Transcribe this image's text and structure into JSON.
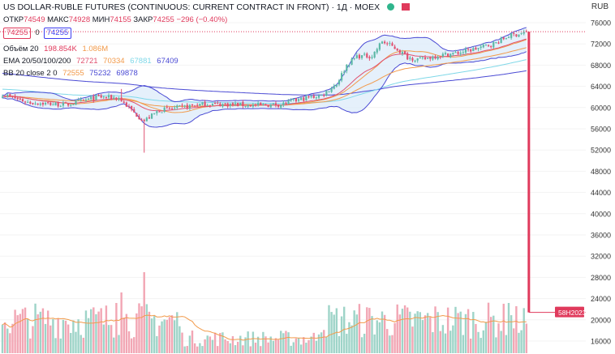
{
  "header": {
    "title": "US DOLLAR-RUBLE FUTURES (CONTINUOUS: CURRENT CONTRACT IN FRONT) · 1Д · MOEX",
    "ohlc": {
      "open_label": "ОТКР",
      "open": "74549",
      "high_label": "МАКС",
      "high": "74928",
      "low_label": "МИН",
      "low": "74155",
      "close_label": "ЗАКР",
      "close": "74255",
      "change": "−296 (−0.40%)"
    },
    "sell_price": "74255",
    "spread": "0",
    "buy_price": "74255"
  },
  "indicators": {
    "volume": {
      "label": "Объём 20",
      "value": "198.854K",
      "ma": "1.086M"
    },
    "ema": {
      "label": "EMA 20/50/100/200",
      "values": [
        "72721",
        "70334",
        "67881",
        "67409"
      ]
    },
    "bb": {
      "label": "BB 20 close 2 0",
      "values": [
        "72555",
        "75232",
        "69878"
      ]
    }
  },
  "colors": {
    "up": "#5cb8a6",
    "down": "#e05170",
    "vol_up": "#9ed4c8",
    "vol_down": "#f2a6b4",
    "bb_band": "#4a4ad4",
    "bb_fill": "#dcebfa",
    "bb_mid": "#f29a4a",
    "ema20": "#e05170",
    "ema50": "#f29a4a",
    "ema100": "#7fd8e8",
    "ema200": "#4a4ad4",
    "accent": "#e03a5c"
  },
  "axis": {
    "currency": "RUB",
    "date_label": "58Н2023"
  },
  "chart_data": {
    "type": "candlestick",
    "title": "US DOLLAR-RUBLE FUTURES (CONTINUOUS: CURRENT CONTRACT IN FRONT) · 1Д · MOEX",
    "ylabel": "RUB",
    "ylim": [
      14000,
      78000
    ],
    "yticks": [
      76000,
      72000,
      68000,
      64000,
      60000,
      56000,
      52000,
      48000,
      44000,
      40000,
      36000,
      32000,
      28000,
      24000,
      20000,
      16000
    ],
    "last_close": 74255,
    "last_close_line": 74300,
    "expiry_drop_to": 21400,
    "expiry_label": "58Н2023",
    "anchors": [
      [
        0,
        62500
      ],
      [
        10,
        61000
      ],
      [
        25,
        60500
      ],
      [
        38,
        62000
      ],
      [
        46,
        61800
      ],
      [
        52,
        59000
      ],
      [
        56,
        57500
      ],
      [
        62,
        59500
      ],
      [
        70,
        60000
      ],
      [
        80,
        60700
      ],
      [
        90,
        60600
      ],
      [
        100,
        60400
      ],
      [
        110,
        60600
      ],
      [
        120,
        61800
      ],
      [
        126,
        62300
      ],
      [
        132,
        64500
      ],
      [
        136,
        68000
      ],
      [
        140,
        69700
      ],
      [
        146,
        69700
      ],
      [
        150,
        72500
      ],
      [
        156,
        71000
      ],
      [
        160,
        69500
      ],
      [
        165,
        69000
      ],
      [
        172,
        69800
      ],
      [
        180,
        70300
      ],
      [
        188,
        71200
      ],
      [
        195,
        72200
      ],
      [
        200,
        73500
      ],
      [
        207,
        74255
      ]
    ],
    "spikes": [
      [
        47,
        63500
      ],
      [
        56,
        51500
      ]
    ],
    "volume_relative": [
      0.34,
      0.42,
      0.28,
      0.36,
      0.22,
      0.3,
      0.45,
      0.25,
      0.6,
      0.31,
      0.38,
      0.29,
      0.26,
      0.33,
      0.74,
      0.35,
      0.48,
      0.4,
      0.27,
      0.3
    ]
  }
}
